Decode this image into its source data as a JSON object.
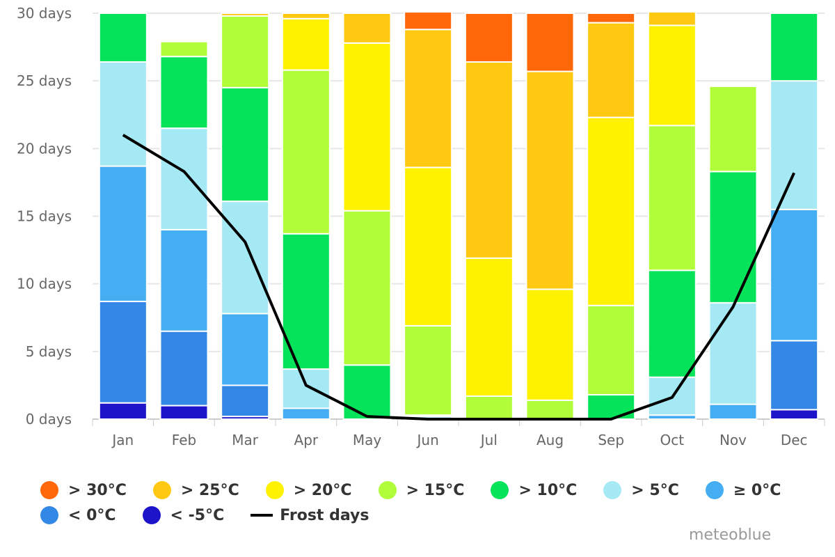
{
  "chart_data": {
    "type": "bar",
    "stacked": true,
    "categories": [
      "Jan",
      "Feb",
      "Mar",
      "Apr",
      "May",
      "Jun",
      "Jul",
      "Aug",
      "Sep",
      "Oct",
      "Nov",
      "Dec"
    ],
    "y_ticks": [
      "0 days",
      "5 days",
      "10 days",
      "15 days",
      "20 days",
      "25 days",
      "30 days"
    ],
    "ylim": [
      0,
      30
    ],
    "grid": true,
    "legend_position": "bottom",
    "series": [
      {
        "name": "< -5°C",
        "color": "#1d13c9",
        "values": [
          1.2,
          1.0,
          0.2,
          0,
          0,
          0,
          0,
          0,
          0,
          0,
          0,
          0.7
        ]
      },
      {
        "name": "< 0°C",
        "color": "#3388e6",
        "values": [
          7.5,
          5.5,
          2.3,
          0,
          0,
          0,
          0,
          0,
          0,
          0,
          0,
          5.1
        ]
      },
      {
        "name": "≥ 0°C",
        "color": "#45aef2",
        "values": [
          10.0,
          7.5,
          5.3,
          0.8,
          0,
          0,
          0,
          0,
          0,
          0.3,
          1.1,
          9.7
        ]
      },
      {
        "name": "> 5°C",
        "color": "#a5e9f5",
        "values": [
          7.7,
          7.5,
          8.3,
          2.9,
          0,
          0.2,
          0,
          0,
          0,
          2.8,
          7.5,
          9.5
        ]
      },
      {
        "name": "> 10°C",
        "color": "#05e35a",
        "values": [
          3.6,
          5.3,
          8.4,
          10.0,
          4.0,
          0.1,
          0,
          0,
          1.8,
          7.9,
          9.7,
          5.0
        ]
      },
      {
        "name": "> 15°C",
        "color": "#b1fd39",
        "values": [
          0,
          1.1,
          5.3,
          12.1,
          11.4,
          6.6,
          1.7,
          1.4,
          6.6,
          10.7,
          6.3,
          0
        ]
      },
      {
        "name": "> 20°C",
        "color": "#fff200",
        "values": [
          0,
          0,
          0,
          3.8,
          12.4,
          11.7,
          10.2,
          8.2,
          13.9,
          7.4,
          0,
          0
        ]
      },
      {
        "name": "> 25°C",
        "color": "#fec910",
        "values": [
          0,
          0,
          0.2,
          0.4,
          2.2,
          10.2,
          14.5,
          16.1,
          7.0,
          1.0,
          0,
          0
        ]
      },
      {
        "name": "> 30°C",
        "color": "#ff6708",
        "values": [
          0,
          0,
          0,
          0,
          0,
          1.3,
          3.6,
          4.3,
          0.7,
          0,
          0,
          0
        ]
      }
    ],
    "line_series": {
      "name": "Frost days",
      "color": "#000000",
      "values": [
        21.0,
        18.3,
        13.1,
        2.5,
        0.2,
        0,
        0,
        0,
        0,
        1.6,
        8.3,
        18.2
      ]
    }
  },
  "legend": {
    "row1": [
      {
        "label": "> 30°C",
        "color": "#ff6708"
      },
      {
        "label": "> 25°C",
        "color": "#fec910"
      },
      {
        "label": "> 20°C",
        "color": "#fff200"
      },
      {
        "label": "> 15°C",
        "color": "#b1fd39"
      },
      {
        "label": "> 10°C",
        "color": "#05e35a"
      },
      {
        "label": "> 5°C",
        "color": "#a5e9f5"
      },
      {
        "label": "≥ 0°C",
        "color": "#45aef2"
      }
    ],
    "row2": [
      {
        "label": "< 0°C",
        "color": "#3388e6"
      },
      {
        "label": "< -5°C",
        "color": "#1d13c9"
      }
    ],
    "frost_label": "Frost days"
  },
  "credit": "meteoblue"
}
